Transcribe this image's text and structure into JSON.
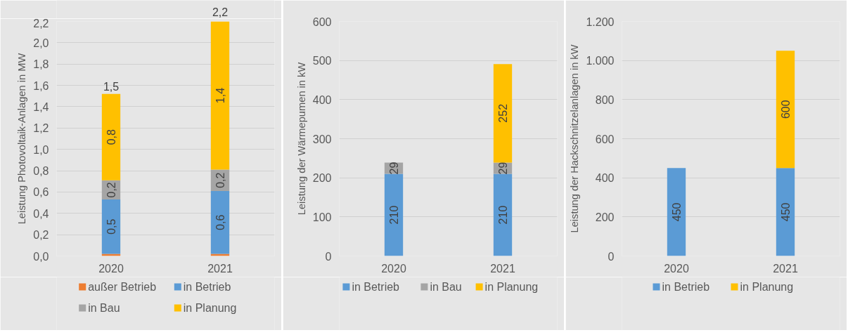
{
  "chart_data": [
    {
      "type": "bar",
      "stacked": true,
      "categories": [
        "2020",
        "2021"
      ],
      "ylabel": "Leistung Photovoltaik-Anlagen in MW",
      "ylim": [
        0,
        2.2
      ],
      "yticks": [
        {
          "value": 0,
          "label": "0,0"
        },
        {
          "value": 0.2,
          "label": "0,2"
        },
        {
          "value": 0.4,
          "label": "0,4"
        },
        {
          "value": 0.6,
          "label": "0,6"
        },
        {
          "value": 0.8,
          "label": "0,8"
        },
        {
          "value": 1.0,
          "label": "1,0"
        },
        {
          "value": 1.2,
          "label": "1,2"
        },
        {
          "value": 1.4,
          "label": "1,4"
        },
        {
          "value": 1.6,
          "label": "1,6"
        },
        {
          "value": 1.8,
          "label": "1,8"
        },
        {
          "value": 2.0,
          "label": "2,0"
        },
        {
          "value": 2.2,
          "label": "2,2"
        }
      ],
      "grid": "y",
      "legend": "bottom",
      "series": [
        {
          "name": "außer Betrieb",
          "color": "#ed7d31",
          "values": [
            0.02,
            0.02
          ]
        },
        {
          "name": "in Betrieb",
          "color": "#5b9bd5",
          "values": [
            0.51,
            0.59
          ],
          "value_labels": [
            "0,5",
            "0,6"
          ]
        },
        {
          "name": "in Bau",
          "color": "#a5a5a5",
          "values": [
            0.18,
            0.2
          ],
          "value_labels": [
            "0,2",
            "0,2"
          ]
        },
        {
          "name": "in Planung",
          "color": "#ffc000",
          "values": [
            0.81,
            1.39
          ],
          "value_labels": [
            "0,8",
            "1,4"
          ]
        }
      ],
      "totals": [
        "1,5",
        "2,2"
      ]
    },
    {
      "type": "bar",
      "stacked": true,
      "categories": [
        "2020",
        "2021"
      ],
      "ylabel": "Leistung der Wärmepumen in kW",
      "ylim": [
        0,
        600
      ],
      "yticks": [
        0,
        100,
        200,
        300,
        400,
        500,
        600
      ],
      "grid": "y",
      "legend": "bottom",
      "data_labels": true,
      "series": [
        {
          "name": "in Betrieb",
          "color": "#5b9bd5",
          "values": [
            210,
            210
          ]
        },
        {
          "name": "in Bau",
          "color": "#a5a5a5",
          "values": [
            29,
            29
          ]
        },
        {
          "name": "in Planung",
          "color": "#ffc000",
          "values": [
            null,
            252
          ]
        }
      ]
    },
    {
      "type": "bar",
      "stacked": true,
      "categories": [
        "2020",
        "2021"
      ],
      "ylabel": "Leistung der Hackschnitzelanlagen in kW",
      "ylim": [
        0,
        1200
      ],
      "yticks": [
        0,
        200,
        400,
        600,
        800,
        {
          "value": 1000,
          "label": "1.000"
        },
        {
          "value": 1200,
          "label": "1.200"
        }
      ],
      "grid": "y",
      "legend": "bottom",
      "data_labels": true,
      "series": [
        {
          "name": "in Betrieb",
          "color": "#5b9bd5",
          "values": [
            450,
            450
          ]
        },
        {
          "name": "in Planung",
          "color": "#ffc000",
          "values": [
            null,
            600
          ]
        }
      ]
    }
  ]
}
